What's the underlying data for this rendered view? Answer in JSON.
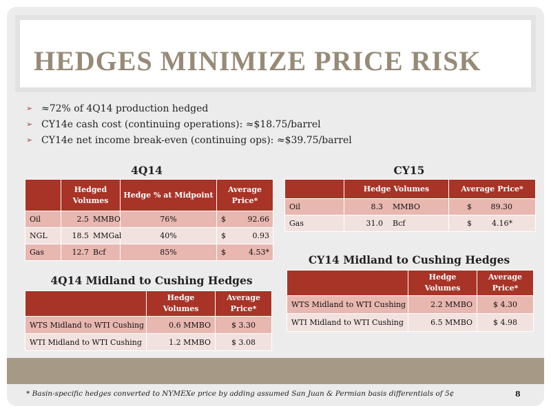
{
  "title": "HEDGES MINIMIZE PRICE RISK",
  "bullets": [
    "≈72% of 4Q14 production hedged",
    "CY14e cash cost (continuing operations): ≈$18.75/barrel",
    "CY14e net income break-even (continuing ops):  ≈$39.75/barrel"
  ],
  "tables": {
    "q4_14": {
      "title": "4Q14",
      "headers": [
        "",
        "Hedged Volumes",
        "Hedge % at Midpoint",
        "Average Price*"
      ],
      "rows": [
        {
          "label": "Oil",
          "volume": "2.5",
          "unit": "MMBO",
          "pct": "76%",
          "dollar": "$",
          "price": "92.66"
        },
        {
          "label": "NGL",
          "volume": "18.5",
          "unit": "MMGal",
          "pct": "40%",
          "dollar": "$",
          "price": "0.93"
        },
        {
          "label": "Gas",
          "volume": "12.7",
          "unit": "Bcf",
          "pct": "85%",
          "dollar": "$",
          "price": "4.53*"
        }
      ]
    },
    "cy15": {
      "title": "CY15",
      "headers": [
        "",
        "Hedge Volumes",
        "Average Price*"
      ],
      "rows": [
        {
          "label": "Oil",
          "volume": "8.3",
          "unit": "MMBO",
          "dollar": "$",
          "price": "89.30"
        },
        {
          "label": "Gas",
          "volume": "31.0",
          "unit": "Bcf",
          "dollar": "$",
          "price": "4.16*"
        }
      ]
    },
    "q4_14_midland": {
      "title": "4Q14 Midland to Cushing Hedges",
      "headers": [
        "",
        "Hedge Volumes",
        "Average Price*"
      ],
      "rows": [
        {
          "label": "WTS Midland to WTI Cushing",
          "volume": "0.6 MMBO",
          "price": "$ 3.30"
        },
        {
          "label": "WTI Midland to WTI Cushing",
          "volume": "1.2 MMBO",
          "price": "$ 3.08"
        }
      ]
    },
    "cy14_midland": {
      "title": "CY14 Midland to Cushing Hedges",
      "headers": [
        "",
        "Hedge Volumes",
        "Average Price*"
      ],
      "rows": [
        {
          "label": "WTS Midland to WTI Cushing",
          "volume": "2.2 MMBO",
          "price": "$ 4.30"
        },
        {
          "label": "WTI Midland to WTI Cushing",
          "volume": "6.5 MMBO",
          "price": "$ 4.98"
        }
      ]
    }
  },
  "footnote": "*  Basin-specific hedges converted to NYMEXe price by adding assumed San Juan & Permian basis differentials of 5¢",
  "page_number": "8",
  "colors": {
    "header_red": "#a83327",
    "row_dark": "#e8b7b0",
    "row_light": "#f2e2df",
    "title_taupe": "#978a77",
    "band_taupe": "#a69a86",
    "bullet_arrow": "#b73c2e"
  }
}
